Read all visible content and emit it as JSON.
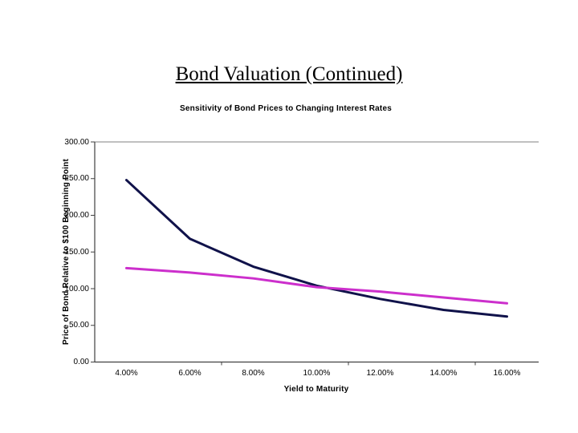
{
  "page": {
    "title": "Bond Valuation (Continued)"
  },
  "chart_data": {
    "type": "line",
    "title": "Sensitivity of Bond Prices to Changing Interest Rates",
    "xlabel": "Yield to Maturity",
    "ylabel": "Price of Bond Relative to $100 Beginning Point",
    "categories": [
      "4.00%",
      "6.00%",
      "8.00%",
      "10.00%",
      "12.00%",
      "14.00%",
      "16.00%"
    ],
    "series": [
      {
        "name": "navy",
        "color": "#10124a",
        "values": [
          248,
          168,
          130,
          104,
          86,
          71,
          62
        ]
      },
      {
        "name": "magenta",
        "color": "#cc2fcc",
        "values": [
          128,
          122,
          114,
          102,
          96,
          88,
          80
        ]
      }
    ],
    "ylim": [
      0,
      300
    ],
    "yticks": [
      300,
      250,
      200,
      150,
      100,
      50,
      0
    ],
    "ytick_labels": [
      "300.00",
      "250.00",
      "200.00",
      "150.00",
      "100.00",
      "50.00",
      "0.00"
    ],
    "grid": false,
    "legend": "none",
    "colors": {
      "axis": "#404040",
      "plot_top_border": "#808080",
      "text": "#000000"
    }
  }
}
